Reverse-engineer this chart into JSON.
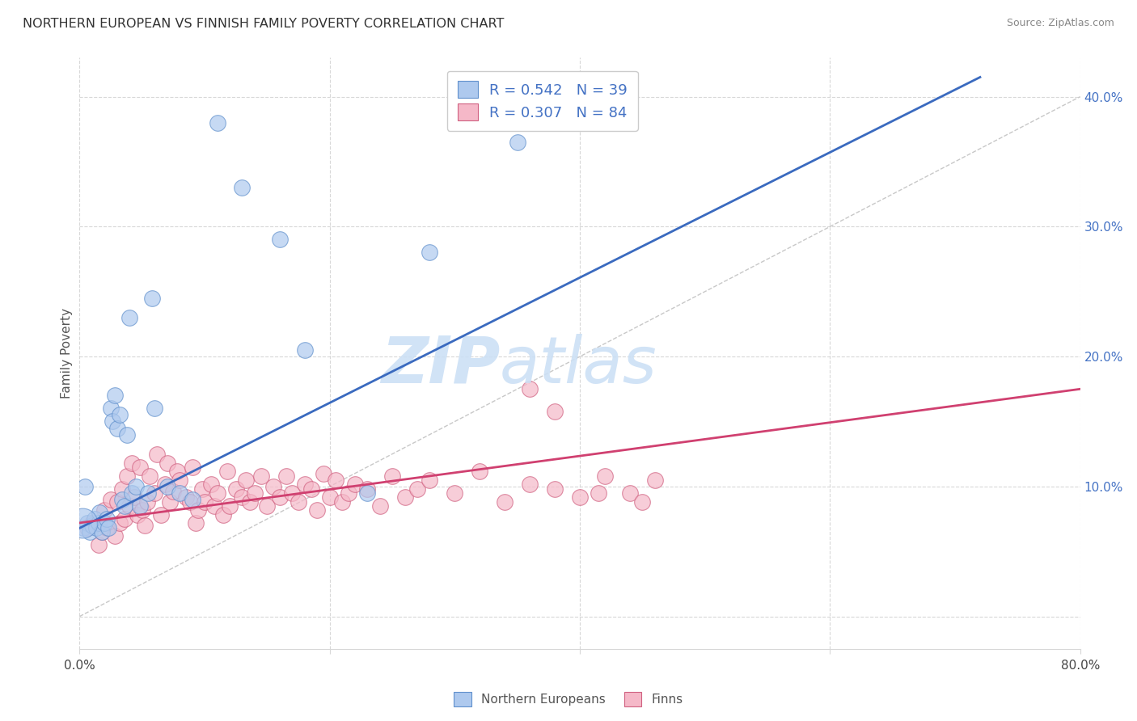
{
  "title": "NORTHERN EUROPEAN VS FINNISH FAMILY POVERTY CORRELATION CHART",
  "source": "Source: ZipAtlas.com",
  "ylabel": "Family Poverty",
  "xmin": 0.0,
  "xmax": 0.8,
  "ymin": -0.025,
  "ymax": 0.43,
  "blue_R": 0.542,
  "blue_N": 39,
  "pink_R": 0.307,
  "pink_N": 84,
  "blue_color": "#aec9ee",
  "pink_color": "#f5b8c8",
  "blue_edge_color": "#6090cc",
  "pink_edge_color": "#d06080",
  "blue_line_color": "#3a6abf",
  "pink_line_color": "#d04070",
  "diag_line_color": "#c8c8c8",
  "grid_color": "#d8d8d8",
  "blue_scatter_x": [
    0.003,
    0.006,
    0.008,
    0.01,
    0.012,
    0.013,
    0.015,
    0.016,
    0.018,
    0.02,
    0.022,
    0.023,
    0.025,
    0.026,
    0.028,
    0.03,
    0.032,
    0.034,
    0.036,
    0.038,
    0.04,
    0.042,
    0.045,
    0.048,
    0.055,
    0.058,
    0.06,
    0.07,
    0.08,
    0.09,
    0.11,
    0.13,
    0.16,
    0.18,
    0.23,
    0.28,
    0.35,
    0.002,
    0.004
  ],
  "blue_scatter_y": [
    0.068,
    0.072,
    0.065,
    0.07,
    0.075,
    0.068,
    0.072,
    0.08,
    0.065,
    0.072,
    0.075,
    0.068,
    0.16,
    0.15,
    0.17,
    0.145,
    0.155,
    0.09,
    0.085,
    0.14,
    0.23,
    0.095,
    0.1,
    0.085,
    0.095,
    0.245,
    0.16,
    0.1,
    0.095,
    0.09,
    0.38,
    0.33,
    0.29,
    0.205,
    0.095,
    0.28,
    0.365,
    0.072,
    0.1
  ],
  "blue_scatter_size": [
    12,
    12,
    12,
    12,
    12,
    12,
    12,
    12,
    12,
    12,
    12,
    12,
    12,
    12,
    12,
    12,
    12,
    12,
    12,
    12,
    12,
    12,
    12,
    12,
    12,
    12,
    12,
    12,
    12,
    12,
    12,
    12,
    12,
    12,
    12,
    12,
    12,
    85,
    12
  ],
  "pink_scatter_x": [
    0.006,
    0.01,
    0.015,
    0.018,
    0.02,
    0.022,
    0.025,
    0.028,
    0.03,
    0.032,
    0.034,
    0.036,
    0.038,
    0.04,
    0.042,
    0.044,
    0.046,
    0.048,
    0.05,
    0.052,
    0.054,
    0.056,
    0.06,
    0.062,
    0.065,
    0.068,
    0.07,
    0.072,
    0.075,
    0.078,
    0.08,
    0.085,
    0.088,
    0.09,
    0.093,
    0.095,
    0.098,
    0.1,
    0.105,
    0.108,
    0.11,
    0.115,
    0.118,
    0.12,
    0.125,
    0.13,
    0.133,
    0.136,
    0.14,
    0.145,
    0.15,
    0.155,
    0.16,
    0.165,
    0.17,
    0.175,
    0.18,
    0.185,
    0.19,
    0.195,
    0.2,
    0.205,
    0.21,
    0.215,
    0.22,
    0.23,
    0.24,
    0.25,
    0.26,
    0.27,
    0.28,
    0.3,
    0.32,
    0.34,
    0.36,
    0.38,
    0.4,
    0.42,
    0.44,
    0.46,
    0.36,
    0.38,
    0.415,
    0.45
  ],
  "pink_scatter_y": [
    0.068,
    0.072,
    0.055,
    0.065,
    0.082,
    0.068,
    0.09,
    0.062,
    0.088,
    0.072,
    0.098,
    0.075,
    0.108,
    0.085,
    0.118,
    0.092,
    0.078,
    0.115,
    0.082,
    0.07,
    0.088,
    0.108,
    0.095,
    0.125,
    0.078,
    0.102,
    0.118,
    0.088,
    0.096,
    0.112,
    0.105,
    0.092,
    0.088,
    0.115,
    0.072,
    0.082,
    0.098,
    0.088,
    0.102,
    0.085,
    0.095,
    0.078,
    0.112,
    0.085,
    0.098,
    0.092,
    0.105,
    0.088,
    0.095,
    0.108,
    0.085,
    0.1,
    0.092,
    0.108,
    0.095,
    0.088,
    0.102,
    0.098,
    0.082,
    0.11,
    0.092,
    0.105,
    0.088,
    0.095,
    0.102,
    0.098,
    0.085,
    0.108,
    0.092,
    0.098,
    0.105,
    0.095,
    0.112,
    0.088,
    0.102,
    0.098,
    0.092,
    0.108,
    0.095,
    0.105,
    0.175,
    0.158,
    0.095,
    0.088
  ],
  "blue_line_x": [
    0.0,
    0.72
  ],
  "blue_line_y": [
    0.068,
    0.415
  ],
  "pink_line_x": [
    0.0,
    0.8
  ],
  "pink_line_y": [
    0.072,
    0.175
  ],
  "diag_line_x": [
    0.0,
    0.8
  ],
  "diag_line_y": [
    0.0,
    0.4
  ],
  "yticks": [
    0.0,
    0.1,
    0.2,
    0.3,
    0.4
  ],
  "ytick_labels": [
    "",
    "10.0%",
    "20.0%",
    "30.0%",
    "40.0%"
  ],
  "xtick_positions": [
    0.0,
    0.2,
    0.4,
    0.6,
    0.8
  ],
  "xtick_label_left": "0.0%",
  "xtick_label_right": "80.0%"
}
